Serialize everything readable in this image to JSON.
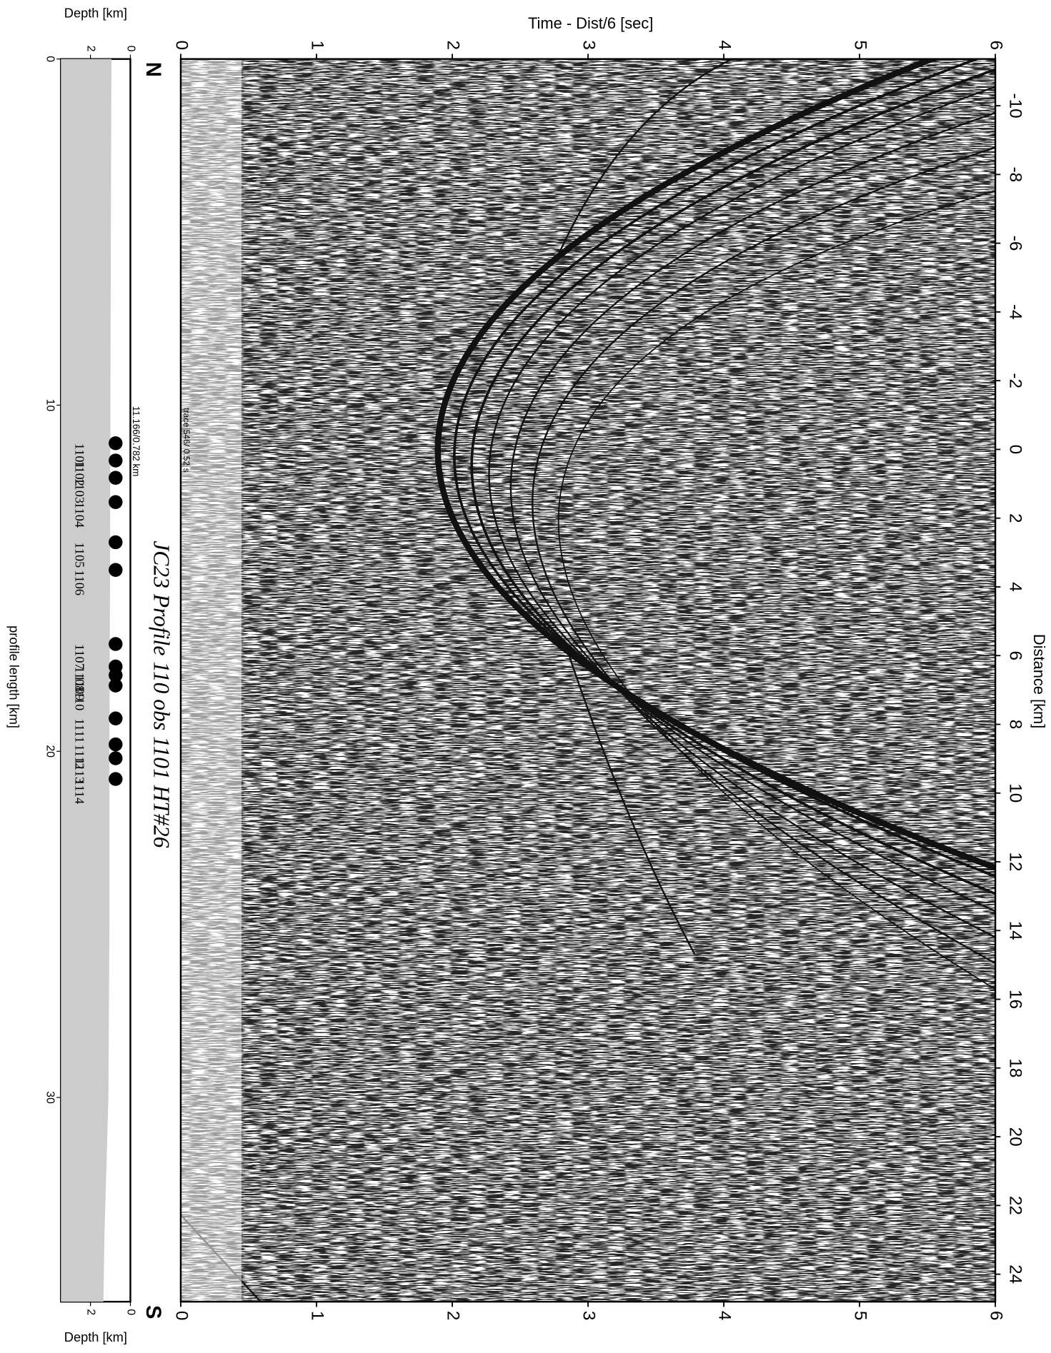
{
  "chart_data": [
    {
      "type": "seismic",
      "title": "JC23 Profile 110 obs 1101 HT#26",
      "xlabel": "Distance [km]",
      "ylabel": "Time - Dist/6 [sec]",
      "xlim": [
        -11.36,
        24.8
      ],
      "xticks": [
        -10,
        -8,
        -6,
        -4,
        -2,
        0,
        2,
        4,
        6,
        8,
        10,
        12,
        14,
        16,
        18,
        20,
        22,
        24
      ],
      "ylim": [
        0,
        6
      ],
      "yticks": [
        0,
        1,
        2,
        3,
        4,
        5,
        6
      ],
      "annotation": "trace 546/ 0.52 s",
      "start_label": "N",
      "end_label": "S"
    },
    {
      "type": "area",
      "xlabel": "profile length [km]",
      "ylabel": "Depth [km]",
      "xlim": [
        0,
        35.9
      ],
      "xticks": [
        0,
        10,
        20,
        30
      ],
      "ylim": [
        0,
        3.48
      ],
      "yticks": [
        0,
        2
      ],
      "x": [
        0,
        5,
        10,
        15,
        20,
        25,
        30,
        34,
        35.9
      ],
      "values": [
        0.95,
        0.98,
        1.0,
        1.02,
        1.05,
        1.05,
        1.1,
        1.3,
        1.35
      ],
      "color": "#cccccc",
      "annotation": "11.166/0.782 km",
      "points": {
        "x": [
          11.1,
          11.6,
          12.1,
          12.8,
          13.96,
          14.76,
          16.9,
          17.55,
          17.8,
          18.1,
          19.05,
          19.8,
          20.2,
          20.8
        ],
        "values": [
          0.74,
          0.74,
          0.74,
          0.74,
          0.74,
          0.74,
          0.74,
          0.74,
          0.74,
          0.74,
          0.74,
          0.74,
          0.74,
          0.74
        ],
        "labels": [
          "1101",
          "1102",
          "1103",
          "1104",
          "1105",
          "1106",
          "1107",
          "1108",
          "1109",
          "1110",
          "1111",
          "1112",
          "1113",
          "1114"
        ],
        "color": "#000000"
      }
    }
  ]
}
